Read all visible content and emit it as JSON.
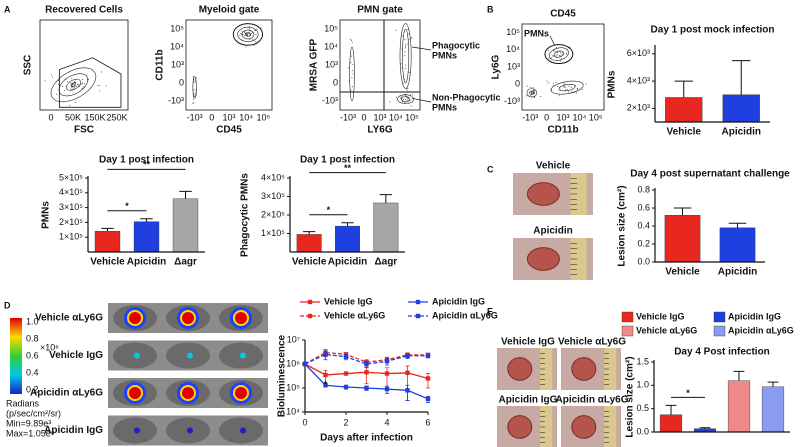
{
  "figure": {
    "panel_labels": [
      "A",
      "B",
      "C",
      "D",
      "E"
    ],
    "flow_plots": [
      {
        "title": "Recovered Cells",
        "xlabel": "FSC",
        "ylabel": "SSC",
        "xtick_labels": [
          "0",
          "50K",
          "150K",
          "250K"
        ]
      },
      {
        "title": "Myeloid gate",
        "xlabel": "CD45",
        "ylabel": "CD11b",
        "xtick_labels": [
          "-10³",
          "0",
          "10³",
          "10⁴",
          "10⁵"
        ],
        "ytick_labels": [
          "-10³",
          "0",
          "10³",
          "10⁴",
          "10⁵"
        ]
      },
      {
        "title": "PMN gate",
        "xlabel": "LY6G",
        "ylabel": "MRSA GFP",
        "xtick_labels": [
          "-10³",
          "0",
          "10³",
          "10⁴",
          "10⁵"
        ],
        "ytick_labels": [
          "-10³",
          "0",
          "10³",
          "10⁴",
          "10⁵"
        ],
        "annotations": [
          [
            "Phagocytic",
            "PMNs"
          ],
          [
            "Non-Phagocytic",
            "PMNs"
          ]
        ]
      },
      {
        "title": "CD45",
        "xlabel": "CD11b",
        "ylabel": "Ly6G",
        "xtick_labels": [
          "-10³",
          "0",
          "10³",
          "10⁴",
          "10⁵"
        ],
        "ytick_labels": [
          "-10³",
          "0",
          "10³",
          "10⁴",
          "10⁵"
        ],
        "annotations": [
          [
            "PMNs"
          ]
        ]
      }
    ],
    "photos_c": [
      "Vehicle",
      "Apicidin"
    ],
    "imaging_d": {
      "rows": [
        "Vehicle αLy6G",
        "Vehicle IgG",
        "Apicidin αLy6G",
        "Apicidin IgG"
      ],
      "colorbar_ticks": [
        "1.0",
        "0.8",
        "0.6",
        "0.4",
        "0.2"
      ],
      "colorbar_scale": "×10⁶",
      "notes": [
        "Radians",
        "(p/sec/cm²/sr)",
        "Min=9.89e³",
        "Max=1.05e⁶"
      ]
    },
    "photos_e": [
      "Vehicle IgG",
      "Vehicle αLy6G",
      "Apicidin IgG",
      "Apicidin αLy6G"
    ]
  },
  "chart_data": [
    {
      "type": "bar",
      "title": "Day 1 post mock infection",
      "ylabel": "PMNs",
      "categories": [
        "Vehicle",
        "Apicidin"
      ],
      "values": [
        2800,
        3000
      ],
      "errors": [
        1200,
        2500
      ],
      "colors": [
        "#e8281e",
        "#1f3fe0"
      ],
      "ylim": [
        1000,
        6500
      ],
      "yticks": [
        {
          "value": 2000,
          "label": "2×10³"
        },
        {
          "value": 4000,
          "label": "4×10³"
        },
        {
          "value": 6000,
          "label": "6×10³"
        }
      ]
    },
    {
      "type": "bar",
      "title": "Day 1 post infection",
      "ylabel": "PMNs",
      "categories": [
        "Vehicle",
        "Apicidin",
        "Δagr"
      ],
      "values": [
        140000,
        205000,
        360000
      ],
      "errors": [
        20000,
        20000,
        50000
      ],
      "colors": [
        "#e8281e",
        "#1f3fe0",
        "#a6a6a6"
      ],
      "ylim": [
        0,
        500000
      ],
      "yticks": [
        {
          "value": 100000,
          "label": "1×10⁵"
        },
        {
          "value": 200000,
          "label": "2×10⁵"
        },
        {
          "value": 300000,
          "label": "3×10⁵"
        },
        {
          "value": 400000,
          "label": "4×10⁵"
        },
        {
          "value": 500000,
          "label": "5×10⁵"
        }
      ],
      "annotations": [
        "*",
        "**"
      ]
    },
    {
      "type": "bar",
      "title": "Day 1 post infection",
      "ylabel": "Phagocytic PMNs",
      "categories": [
        "Vehicle",
        "Apicidin",
        "Δagr"
      ],
      "values": [
        95000,
        140000,
        265000
      ],
      "errors": [
        15000,
        18000,
        45000
      ],
      "colors": [
        "#e8281e",
        "#1f3fe0",
        "#a6a6a6"
      ],
      "ylim": [
        0,
        400000
      ],
      "yticks": [
        {
          "value": 100000,
          "label": "1×10⁵"
        },
        {
          "value": 200000,
          "label": "2×10⁵"
        },
        {
          "value": 300000,
          "label": "3×10⁵"
        },
        {
          "value": 400000,
          "label": "4×10⁵"
        }
      ],
      "annotations": [
        "*",
        "**"
      ]
    },
    {
      "type": "bar",
      "title": "Day 4 post supernatant challenge",
      "ylabel": "Lesion size (cm²)",
      "categories": [
        "Vehicle",
        "Apicidin"
      ],
      "values": [
        0.52,
        0.38
      ],
      "errors": [
        0.08,
        0.05
      ],
      "colors": [
        "#e8281e",
        "#1f3fe0"
      ],
      "ylim": [
        0,
        0.8
      ],
      "yticks": [
        {
          "value": 0,
          "label": "0.0"
        },
        0.2,
        0.4,
        0.6,
        0.8
      ]
    },
    {
      "type": "bar",
      "title": "Day 4 Post infection",
      "ylabel": "Lesion size (cm²)",
      "legend": true,
      "categories": [
        "Vehicle IgG",
        "Apicidin IgG",
        "Vehicle αLy6G",
        "Apicidin αLy6G"
      ],
      "values": [
        0.37,
        0.07,
        1.1,
        0.97
      ],
      "errors": [
        0.2,
        0.02,
        0.2,
        0.1
      ],
      "colors": [
        "#e8281e",
        "#1f3fe0",
        "#f08a8a",
        "#8b9bf0"
      ],
      "ylim": [
        0,
        1.5
      ],
      "yticks": [
        {
          "value": 0,
          "label": "0.0"
        },
        0.5,
        {
          "value": 1,
          "label": "1.0"
        },
        1.5
      ],
      "annotations": [
        "*"
      ]
    },
    {
      "type": "line",
      "ylabel": "Bioluminescence",
      "xlabel": "Days after infection",
      "x": [
        0,
        1,
        2,
        3,
        4,
        5,
        6
      ],
      "xlim": [
        0,
        6
      ],
      "xticks": [
        0,
        2,
        4,
        6
      ],
      "log_scale": true,
      "ylim": [
        10000,
        10000000
      ],
      "yticks": [
        {
          "value": 10000,
          "label": "10⁴"
        },
        {
          "value": 100000,
          "label": "10⁵"
        },
        {
          "value": 1000000,
          "label": "10⁶"
        },
        {
          "value": 10000000,
          "label": "10⁷"
        }
      ],
      "annotations": [
        "*"
      ],
      "series": [
        {
          "name": "Vehicle IgG",
          "color": "#e8281e",
          "line_style": "solid",
          "values": [
            1000000,
            350000,
            400000,
            450000,
            400000,
            430000,
            250000
          ],
          "errors": [
            0,
            200000,
            500000,
            300000,
            300000,
            400000,
            150000
          ]
        },
        {
          "name": "Apicidin IgG",
          "color": "#1f3fe0",
          "line_style": "solid",
          "values": [
            1000000,
            130000,
            110000,
            100000,
            90000,
            80000,
            35000
          ],
          "errors": [
            0,
            20000,
            20000,
            20000,
            30000,
            50000,
            10000
          ]
        },
        {
          "name": "Vehicle αLy6G",
          "color": "#e8281e",
          "line_style": "dashed",
          "values": [
            1000000,
            3000000,
            2500000,
            1200000,
            1500000,
            2400000,
            2400000
          ],
          "errors": [
            0,
            1000000,
            500000,
            300000,
            400000,
            500000,
            400000
          ]
        },
        {
          "name": "Apicidin αLy6G",
          "color": "#1f3fe0",
          "line_style": "dashed",
          "values": [
            1000000,
            2500000,
            2000000,
            1000000,
            1300000,
            2200000,
            2200000
          ],
          "errors": [
            0,
            1000000,
            500000,
            300000,
            400000,
            500000,
            400000
          ]
        }
      ]
    }
  ]
}
